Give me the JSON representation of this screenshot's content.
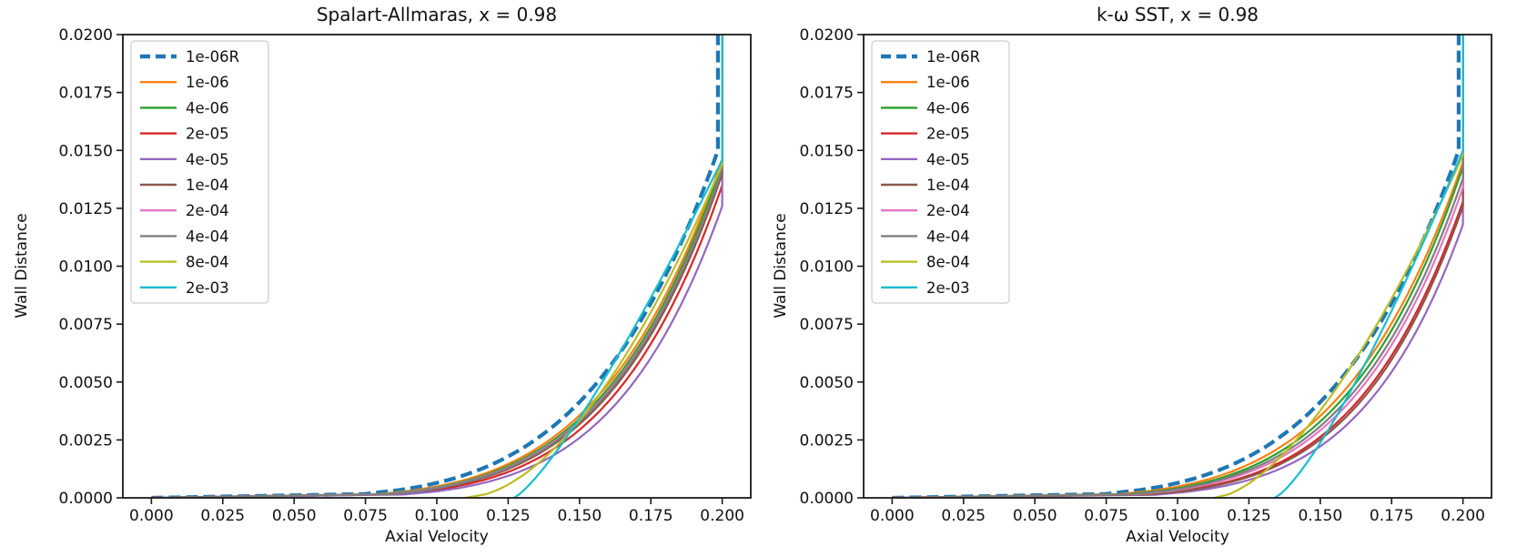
{
  "figure": {
    "background": "#ffffff",
    "text_color": "#111111",
    "spine_color": "#1a1a1a"
  },
  "chart_data": [
    {
      "type": "line",
      "title": "Spalart-Allmaras, x = 0.98",
      "xlabel": "Axial Velocity",
      "ylabel": "Wall Distance",
      "xlim": [
        -0.01,
        0.21
      ],
      "ylim": [
        0,
        0.02
      ],
      "grid": false,
      "legend_position": "upper-left",
      "xticks": {
        "values": [
          0.0,
          0.025,
          0.05,
          0.075,
          0.1,
          0.125,
          0.15,
          0.175,
          0.2
        ],
        "labels": [
          "0.000",
          "0.025",
          "0.050",
          "0.075",
          "0.100",
          "0.125",
          "0.150",
          "0.175",
          "0.200"
        ]
      },
      "yticks": {
        "values": [
          0.0,
          0.0025,
          0.005,
          0.0075,
          0.01,
          0.0125,
          0.015,
          0.0175,
          0.02
        ],
        "labels": [
          "0.0000",
          "0.0025",
          "0.0050",
          "0.0075",
          "0.0100",
          "0.0125",
          "0.0150",
          "0.0175",
          "0.0200"
        ]
      },
      "series": [
        {
          "name": "1e-06R",
          "color": "#1f77b4",
          "line_style": "dashed",
          "line_width": 4.2,
          "profile": {
            "delta": 0.015,
            "exponent": 4.6,
            "x_start": 0,
            "x_max": 0.1985
          }
        },
        {
          "name": "1e-06",
          "color": "#ff7f0e",
          "line_style": "solid",
          "line_width": 2.2,
          "profile": {
            "delta": 0.0146,
            "exponent": 4.9,
            "x_start": 0,
            "x_max": 0.2
          }
        },
        {
          "name": "4e-06",
          "color": "#2ca02c",
          "line_style": "solid",
          "line_width": 2.2,
          "profile": {
            "delta": 0.0144,
            "exponent": 5.0,
            "x_start": 0,
            "x_max": 0.2
          }
        },
        {
          "name": "2e-05",
          "color": "#d62728",
          "line_style": "solid",
          "line_width": 2.2,
          "profile": {
            "delta": 0.0135,
            "exponent": 5.3,
            "x_start": 0,
            "x_max": 0.2
          }
        },
        {
          "name": "4e-05",
          "color": "#9467bd",
          "line_style": "solid",
          "line_width": 2.2,
          "profile": {
            "delta": 0.0126,
            "exponent": 5.5,
            "x_start": 0,
            "x_max": 0.2
          }
        },
        {
          "name": "1e-04",
          "color": "#8c564b",
          "line_style": "solid",
          "line_width": 2.2,
          "profile": {
            "delta": 0.014,
            "exponent": 5.15,
            "x_start": 0,
            "x_max": 0.2
          }
        },
        {
          "name": "2e-04",
          "color": "#e377c2",
          "line_style": "solid",
          "line_width": 2.2,
          "profile": {
            "delta": 0.0142,
            "exponent": 5.05,
            "x_start": 0,
            "x_max": 0.2
          }
        },
        {
          "name": "4e-04",
          "color": "#7f7f7f",
          "line_style": "solid",
          "line_width": 2.2,
          "profile": {
            "delta": 0.0142,
            "exponent": 5.1,
            "x_start": 0,
            "x_max": 0.2
          }
        },
        {
          "name": "8e-04",
          "color": "#bcbd22",
          "line_style": "solid",
          "line_width": 2.2,
          "profile": {
            "delta": 0.0144,
            "exponent": 1.8,
            "x_start": 0.11,
            "x_max": 0.2
          }
        },
        {
          "name": "2e-03",
          "color": "#17becf",
          "line_style": "solid",
          "line_width": 2.2,
          "profile": {
            "delta": 0.0146,
            "exponent": 1.25,
            "x_start": 0.127,
            "x_max": 0.2
          }
        }
      ]
    },
    {
      "type": "line",
      "title": "k-ω SST, x = 0.98",
      "xlabel": "Axial Velocity",
      "ylabel": "Wall Distance",
      "xlim": [
        -0.01,
        0.21
      ],
      "ylim": [
        0,
        0.02
      ],
      "grid": false,
      "legend_position": "upper-left",
      "xticks": {
        "values": [
          0.0,
          0.025,
          0.05,
          0.075,
          0.1,
          0.125,
          0.15,
          0.175,
          0.2
        ],
        "labels": [
          "0.000",
          "0.025",
          "0.050",
          "0.075",
          "0.100",
          "0.125",
          "0.150",
          "0.175",
          "0.200"
        ]
      },
      "yticks": {
        "values": [
          0.0,
          0.0025,
          0.005,
          0.0075,
          0.01,
          0.0125,
          0.015,
          0.0175,
          0.02
        ],
        "labels": [
          "0.0000",
          "0.0025",
          "0.0050",
          "0.0075",
          "0.0100",
          "0.0125",
          "0.0150",
          "0.0175",
          "0.0200"
        ]
      },
      "series": [
        {
          "name": "1e-06R",
          "color": "#1f77b4",
          "line_style": "dashed",
          "line_width": 4.2,
          "profile": {
            "delta": 0.015,
            "exponent": 4.6,
            "x_start": 0,
            "x_max": 0.1985
          }
        },
        {
          "name": "1e-06",
          "color": "#ff7f0e",
          "line_style": "solid",
          "line_width": 2.2,
          "profile": {
            "delta": 0.0145,
            "exponent": 4.9,
            "x_start": 0,
            "x_max": 0.2
          }
        },
        {
          "name": "4e-06",
          "color": "#2ca02c",
          "line_style": "solid",
          "line_width": 2.2,
          "profile": {
            "delta": 0.0143,
            "exponent": 5.1,
            "x_start": 0,
            "x_max": 0.2
          }
        },
        {
          "name": "2e-05",
          "color": "#d62728",
          "line_style": "solid",
          "line_width": 2.2,
          "profile": {
            "delta": 0.0128,
            "exponent": 5.5,
            "x_start": 0,
            "x_max": 0.2
          }
        },
        {
          "name": "4e-05",
          "color": "#9467bd",
          "line_style": "solid",
          "line_width": 2.2,
          "profile": {
            "delta": 0.0118,
            "exponent": 5.8,
            "x_start": 0,
            "x_max": 0.2
          }
        },
        {
          "name": "1e-04",
          "color": "#8c564b",
          "line_style": "solid",
          "line_width": 2.2,
          "profile": {
            "delta": 0.0126,
            "exponent": 5.6,
            "x_start": 0,
            "x_max": 0.2
          }
        },
        {
          "name": "2e-04",
          "color": "#e377c2",
          "line_style": "solid",
          "line_width": 2.2,
          "profile": {
            "delta": 0.0134,
            "exponent": 5.3,
            "x_start": 0,
            "x_max": 0.2
          }
        },
        {
          "name": "4e-04",
          "color": "#7f7f7f",
          "line_style": "solid",
          "line_width": 2.2,
          "profile": {
            "delta": 0.0138,
            "exponent": 5.2,
            "x_start": 0,
            "x_max": 0.2
          }
        },
        {
          "name": "8e-04",
          "color": "#bcbd22",
          "line_style": "solid",
          "line_width": 2.2,
          "profile": {
            "delta": 0.0148,
            "exponent": 1.6,
            "x_start": 0.113,
            "x_max": 0.2
          }
        },
        {
          "name": "2e-03",
          "color": "#17becf",
          "line_style": "solid",
          "line_width": 2.2,
          "profile": {
            "delta": 0.015,
            "exponent": 1.3,
            "x_start": 0.134,
            "x_max": 0.2
          }
        }
      ]
    }
  ]
}
